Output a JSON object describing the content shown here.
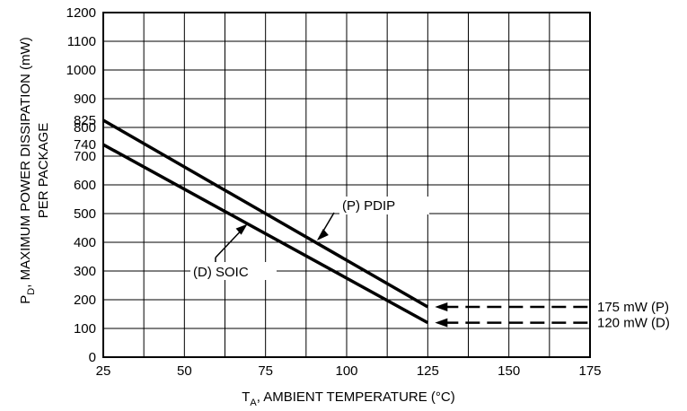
{
  "chart_data": {
    "type": "line",
    "xlabel": {
      "main": "T",
      "sub": "A",
      "rest": ", AMBIENT TEMPERATURE (°C)"
    },
    "ylabel": {
      "main": "P",
      "sub": "D",
      "rest": ", MAXIMUM POWER DISSIPATION (mW)",
      "line2": "PER PACKAGE"
    },
    "xlim": [
      25,
      175
    ],
    "ylim": [
      0,
      1200
    ],
    "x_ticks": [
      25,
      50,
      75,
      100,
      125,
      150,
      175
    ],
    "y_ticks": [
      0,
      100,
      200,
      300,
      400,
      500,
      600,
      700,
      740,
      800,
      825,
      900,
      1000,
      1100,
      1200
    ],
    "grid": true,
    "series": [
      {
        "name": "(P) PDIP",
        "x": [
          25,
          125
        ],
        "y": [
          825,
          175
        ]
      },
      {
        "name": "(D) SOIC",
        "x": [
          25,
          125
        ],
        "y": [
          740,
          120
        ]
      }
    ],
    "annotations": [
      {
        "text": "(P) PDIP",
        "target_series": 0
      },
      {
        "text": "(D) SOIC",
        "target_series": 1
      },
      {
        "text": "175 mW (P)",
        "value": 175
      },
      {
        "text": "120 mW (D)",
        "value": 120
      }
    ]
  }
}
